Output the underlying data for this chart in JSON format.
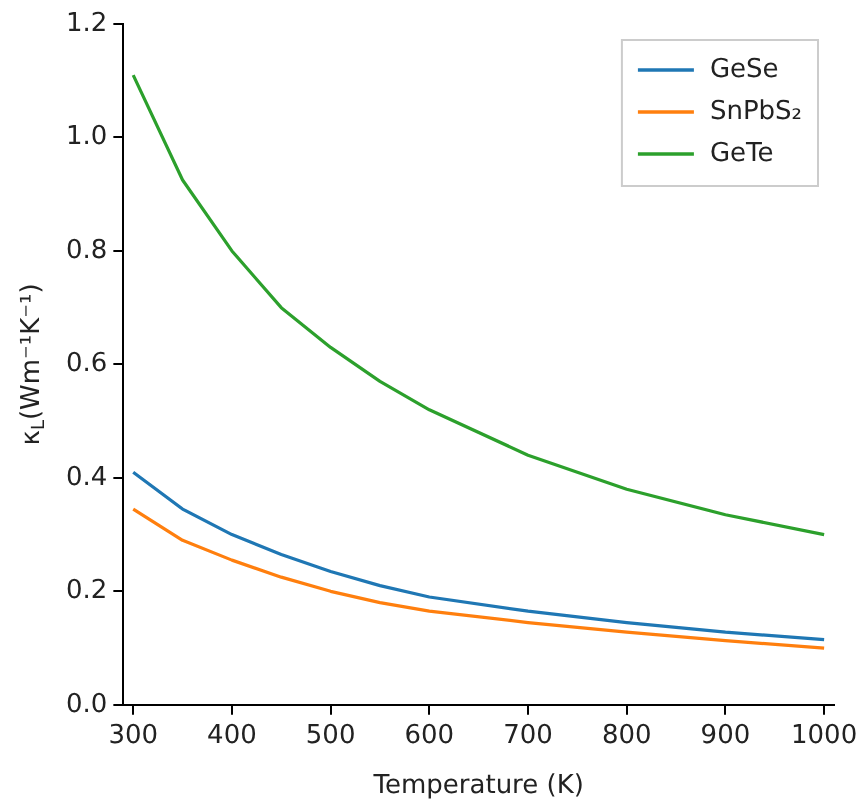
{
  "chart_data": {
    "type": "line",
    "xlabel": "Temperature (K)",
    "ylabel": "κ$_{L}$(Wm⁻¹K⁻¹)",
    "x": [
      300,
      350,
      400,
      450,
      500,
      550,
      600,
      700,
      800,
      900,
      1000
    ],
    "xlim": [
      290,
      1010
    ],
    "xticks": [
      300,
      400,
      500,
      600,
      700,
      800,
      900,
      1000
    ],
    "ylim": [
      0,
      1.2
    ],
    "yticks": [
      {
        "value": 0,
        "label": "0.0"
      },
      0.2,
      0.4,
      0.6,
      0.8,
      {
        "value": 1,
        "label": "1.0"
      },
      1.2
    ],
    "grid": false,
    "legend": "top right",
    "marker": "none",
    "line_style": "solid",
    "series": [
      {
        "name": "GeSe",
        "color": "#1f77b4",
        "values": [
          0.41,
          0.345,
          0.3,
          0.265,
          0.235,
          0.21,
          0.19,
          0.165,
          0.145,
          0.128,
          0.115
        ]
      },
      {
        "name": "SnPbS₂",
        "color": "#ff7f0e",
        "values": [
          0.345,
          0.29,
          0.255,
          0.225,
          0.2,
          0.18,
          0.165,
          0.145,
          0.128,
          0.113,
          0.1
        ]
      },
      {
        "name": "GeTe",
        "color": "#2ca02c",
        "values": [
          1.11,
          0.925,
          0.8,
          0.7,
          0.63,
          0.57,
          0.52,
          0.44,
          0.38,
          0.335,
          0.3
        ]
      }
    ]
  }
}
